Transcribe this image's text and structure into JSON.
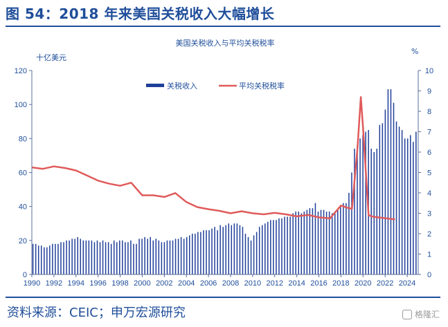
{
  "header": {
    "title": "图 54：2018 年来美国关税收入大幅增长"
  },
  "footer": {
    "source": "资料来源：CEIC；申万宏源研究",
    "watermark": "格隆汇"
  },
  "colors": {
    "bar": "#1f3f99",
    "line": "#e05a5a",
    "text": "#1f4e9a",
    "axis": "#5a6f9a"
  },
  "chart_data": {
    "type": "bar+line",
    "title": "美国关税收入与平均关税税率",
    "left_unit": "十亿美元",
    "right_unit": "%",
    "yleft_lim": [
      0,
      120
    ],
    "yleft_ticks": [
      "0",
      "20",
      "40",
      "60",
      "80",
      "100",
      "120"
    ],
    "yright_lim": [
      0,
      10
    ],
    "yright_ticks": [
      "0",
      "1",
      "2",
      "3",
      "4",
      "5",
      "6",
      "7",
      "8",
      "9",
      "10"
    ],
    "x_lim": [
      1990,
      2025
    ],
    "x_ticks": [
      "1990",
      "1992",
      "1994",
      "1996",
      "1998",
      "2000",
      "2002",
      "2004",
      "2006",
      "2008",
      "2010",
      "2012",
      "2014",
      "2016",
      "2018",
      "2020",
      "2022",
      "2024"
    ],
    "legend": {
      "position": "top-center",
      "bar_label": "关税收入",
      "line_label": "平均关税税率"
    },
    "bars": {
      "name": "关税收入",
      "values": [
        18,
        18,
        17,
        17,
        16,
        16,
        17,
        18,
        18,
        18,
        19,
        19,
        20,
        20,
        21,
        21,
        22,
        21,
        20,
        20,
        20,
        20,
        19,
        20,
        19,
        20,
        19,
        19,
        18,
        20,
        19,
        20,
        20,
        19,
        19,
        20,
        18,
        18,
        21,
        21,
        22,
        21,
        22,
        20,
        21,
        20,
        19,
        19,
        20,
        20,
        20,
        21,
        21,
        22,
        21,
        22,
        23,
        24,
        24,
        25,
        25,
        26,
        26,
        26,
        27,
        28,
        26,
        29,
        28,
        29,
        30,
        29,
        30,
        30,
        29,
        28,
        24,
        22,
        20,
        23,
        25,
        28,
        29,
        30,
        31,
        32,
        32,
        32,
        33,
        33,
        34,
        34,
        34,
        36,
        37,
        37,
        36,
        37,
        38,
        39,
        39,
        42,
        37,
        38,
        38,
        37,
        37,
        36,
        37,
        38,
        40,
        42,
        42,
        48,
        60,
        74,
        76,
        80,
        82,
        84,
        85,
        74,
        72,
        74,
        88,
        89,
        97,
        109,
        109,
        101,
        90,
        87,
        85,
        80,
        80,
        82,
        78,
        84
      ]
    },
    "line": {
      "name": "平均关税税率",
      "x": [
        1990,
        1991,
        1992,
        1993,
        1994,
        1995,
        1996,
        1997,
        1998,
        1999,
        2000,
        2001,
        2002,
        2003,
        2004,
        2005,
        2006,
        2007,
        2008,
        2009,
        2010,
        2011,
        2012,
        2013,
        2014,
        2015,
        2016,
        2017,
        2018,
        2018.5,
        2019,
        2019.5,
        2019.8,
        2020,
        2020.5,
        2021,
        2022,
        2022.9
      ],
      "y": [
        5.25,
        5.18,
        5.3,
        5.22,
        5.1,
        4.85,
        4.6,
        4.45,
        4.35,
        4.5,
        3.88,
        3.88,
        3.8,
        3.99,
        3.55,
        3.3,
        3.2,
        3.12,
        3.0,
        3.1,
        3.0,
        2.95,
        3.02,
        2.95,
        2.85,
        2.92,
        2.8,
        2.75,
        3.38,
        3.28,
        3.22,
        6.2,
        8.7,
        7.2,
        2.9,
        2.82,
        2.76,
        2.7
      ]
    }
  }
}
